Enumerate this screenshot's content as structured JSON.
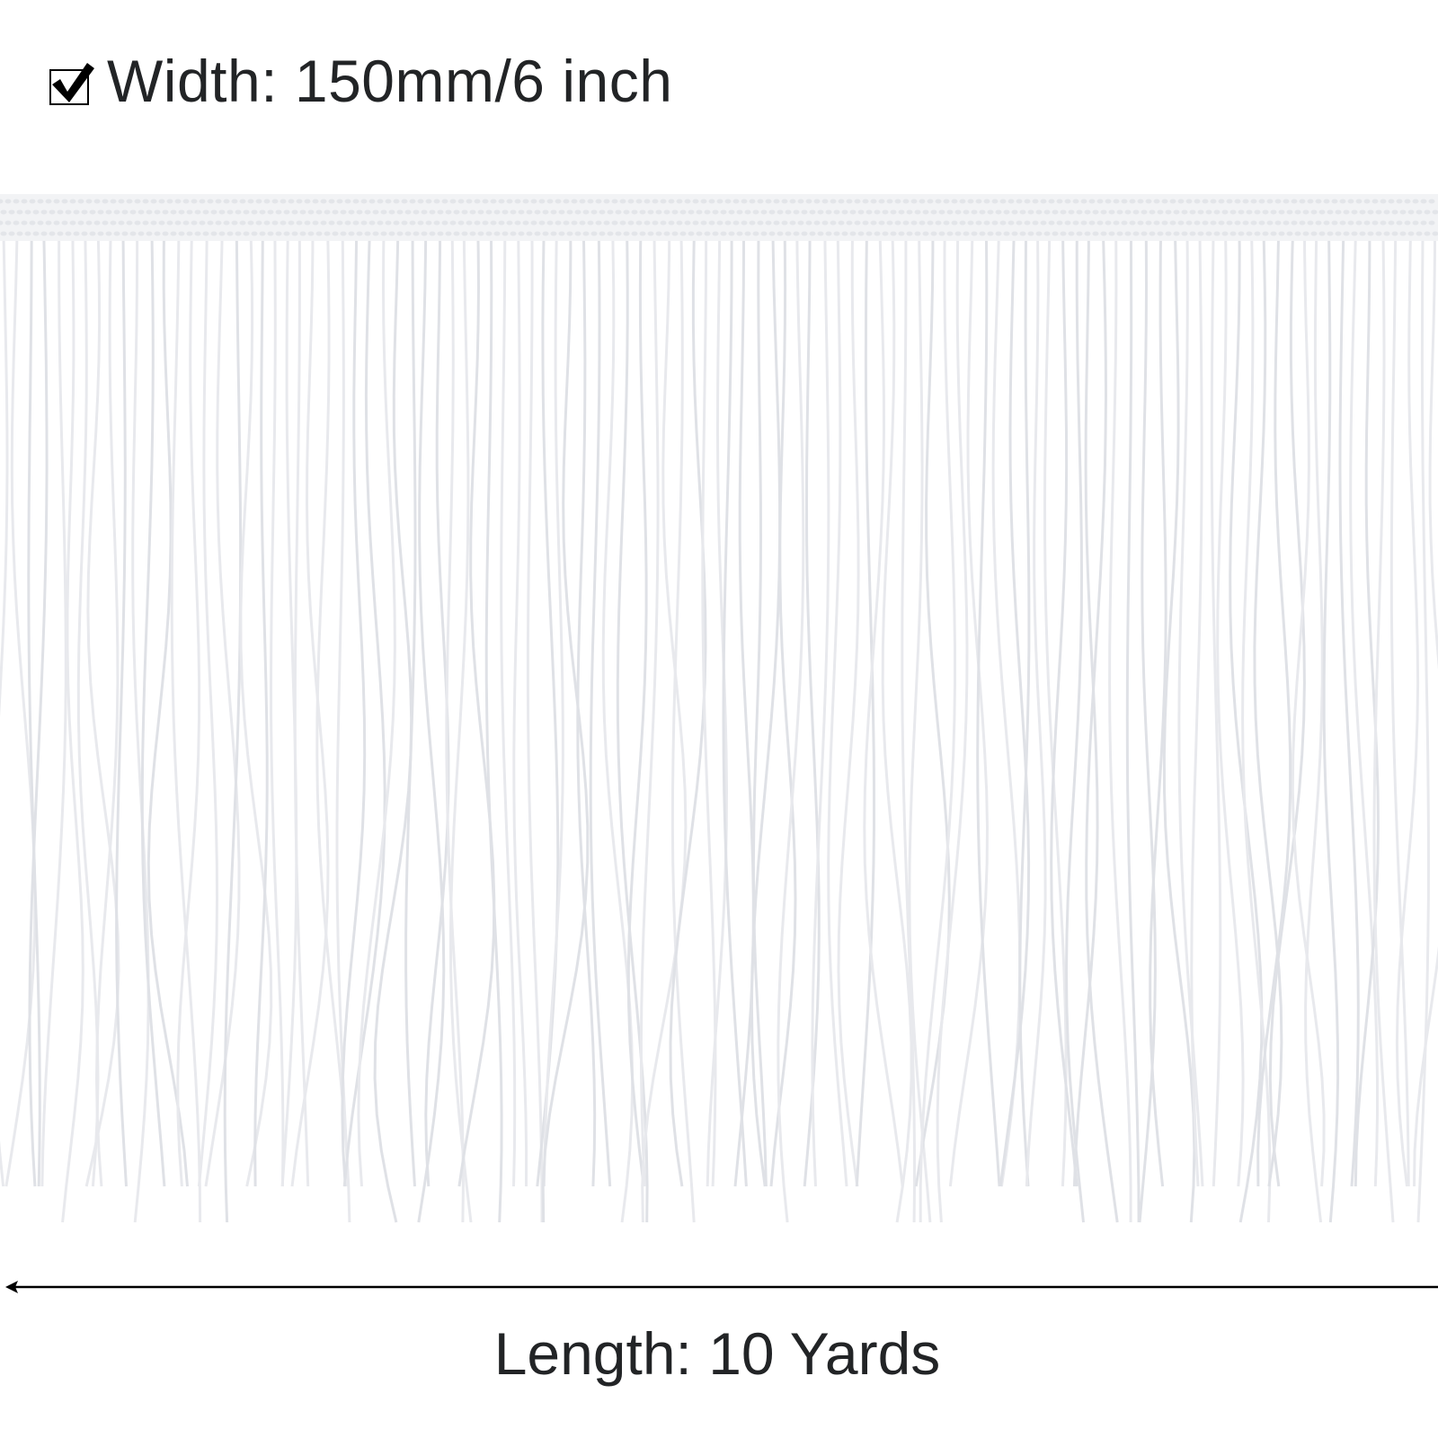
{
  "header": {
    "icon": "checkbox-checked-icon",
    "width_label": "Width: 150mm/6 inch"
  },
  "footer": {
    "length_label": "Length: 10 Yards",
    "arrow": "left-arrow-icon"
  },
  "colors": {
    "text": "#222426",
    "fringe": "#e4e6ea",
    "band": "#f2f3f5"
  }
}
